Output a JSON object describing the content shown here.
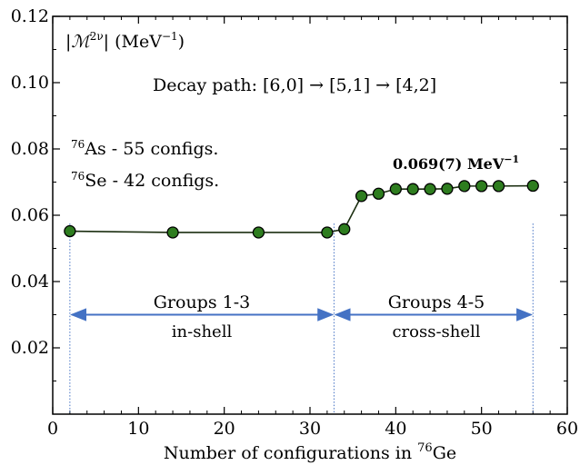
{
  "chart_data": {
    "type": "line",
    "xlabel": "Number of configurations in ",
    "xlabel_sup": "76",
    "xlabel_tail": "Ge",
    "ylabel_inside": "|ℳ",
    "ylabel_sup": "2ν",
    "ylabel_tail": "| (MeV",
    "ylabel_unit_sup": "−1",
    "ylabel_close": ")",
    "xlim": [
      0,
      60
    ],
    "ylim": [
      0,
      0.12
    ],
    "xticks": [
      0,
      10,
      20,
      30,
      40,
      50,
      60
    ],
    "yticks": [
      0.02,
      0.04,
      0.06,
      0.08,
      0.1,
      0.12
    ],
    "ytick_labels": [
      "0.02",
      "0.04",
      "0.06",
      "0.08",
      "0.10",
      "0.12"
    ],
    "xtick_labels": [
      "0",
      "10",
      "20",
      "30",
      "40",
      "50",
      "60"
    ],
    "series": [
      {
        "x": [
          2,
          14,
          24,
          32,
          34,
          36,
          38,
          40,
          42,
          44,
          46,
          48,
          50,
          52,
          56
        ],
        "y": [
          0.0552,
          0.0548,
          0.0548,
          0.0548,
          0.0558,
          0.0658,
          0.0665,
          0.0679,
          0.0679,
          0.0679,
          0.068,
          0.0688,
          0.0688,
          0.0688,
          0.0689
        ]
      }
    ],
    "colors": {
      "marker": "#2e7d1f",
      "line": "#1b2e10",
      "arrow": "#4472c4",
      "vline": "#4472c4"
    },
    "annotations": {
      "decay_path": "Decay path: [6,0] → [5,1] → [4,2]",
      "as_line_sup": "76",
      "as_line": "As - 55 configs.",
      "se_line_sup": "76",
      "se_line": "Se - 42 configs.",
      "result_value": "0.069(7) MeV",
      "result_sup": "−1",
      "group1_title": "Groups 1-3",
      "group1_sub": "in-shell",
      "group2_title": "Groups 4-5",
      "group2_sub": "cross-shell"
    },
    "vlines_x": [
      2,
      32.8,
      56
    ],
    "arrow_ranges": [
      [
        2,
        32.8
      ],
      [
        32.8,
        56
      ]
    ],
    "arrow_y": 0.03
  }
}
